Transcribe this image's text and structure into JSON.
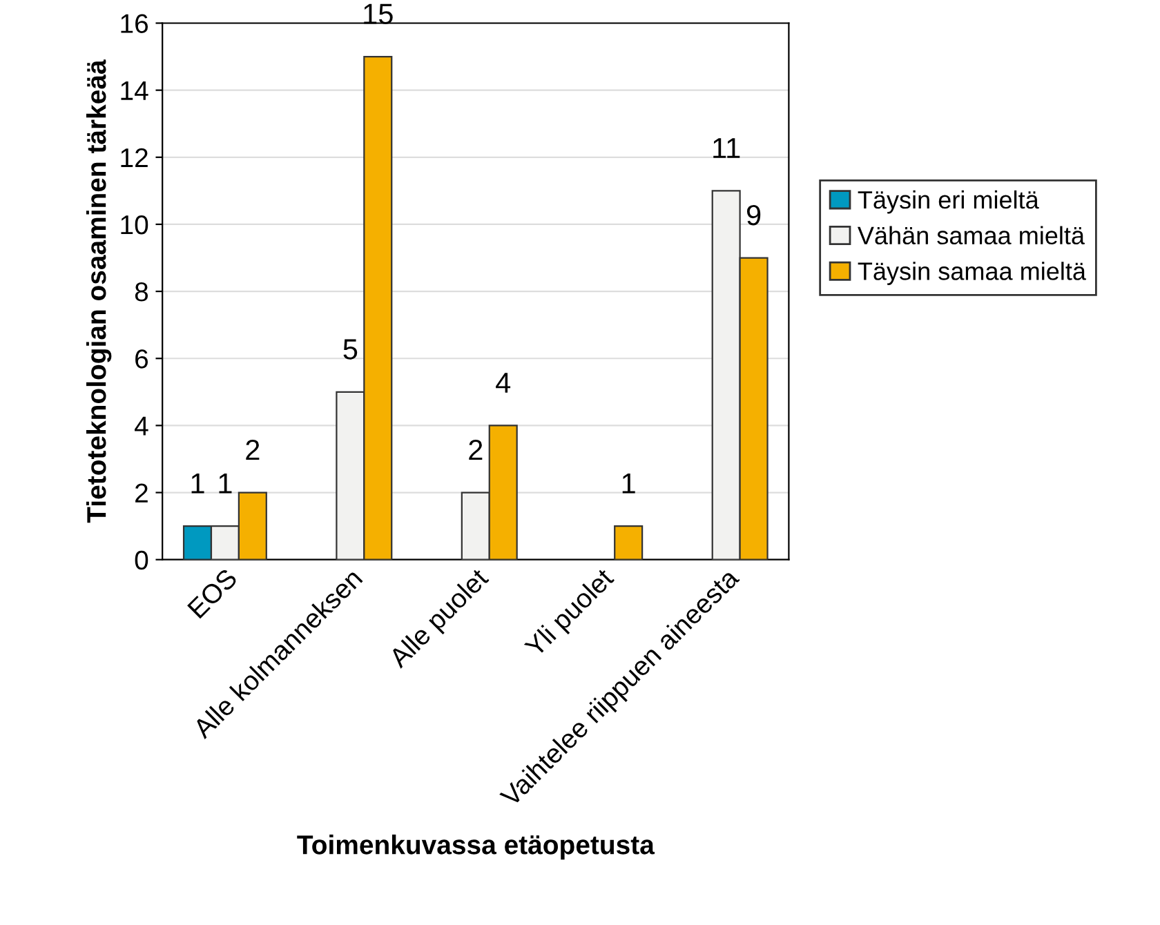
{
  "chart_data": {
    "type": "bar",
    "xlabel": "Toimenkuvassa etäopetusta",
    "ylabel": "Tietoteknologian osaaminen tärkeää",
    "categories": [
      "EOS",
      "Alle kolmanneksen",
      "Alle puolet",
      "Yli puolet",
      "Vaihtelee riippuen aineesta"
    ],
    "series": [
      {
        "name": "Täysin eri mieltä",
        "color": "#0099c0",
        "values": [
          1,
          null,
          null,
          null,
          null
        ]
      },
      {
        "name": "Vähän samaa mieltä",
        "color": "#f2f2f0",
        "values": [
          1,
          5,
          2,
          null,
          11
        ]
      },
      {
        "name": "Täysin samaa mieltä",
        "color": "#f5b000",
        "values": [
          2,
          15,
          4,
          1,
          9
        ]
      }
    ],
    "ylim": [
      0,
      16
    ],
    "yticks": [
      0,
      2,
      4,
      6,
      8,
      10,
      12,
      14,
      16
    ],
    "grid": "y",
    "legend": "right",
    "data_labels": true
  }
}
